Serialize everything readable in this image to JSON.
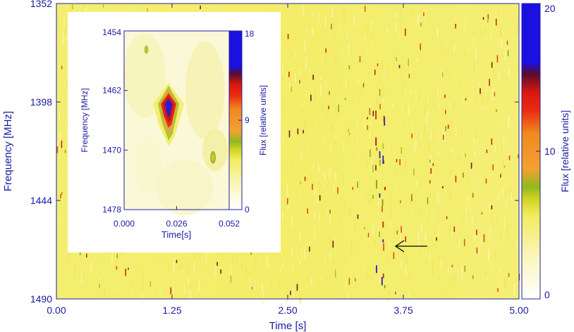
{
  "chart_data": [
    {
      "type": "heatmap",
      "panel": "main dynamic spectrum",
      "xlabel": "Time [s]",
      "ylabel": "Frequency [MHz]",
      "x_ticks": [
        "0.00",
        "1.25",
        "2.50",
        "3.75",
        "5.00"
      ],
      "y_ticks": [
        "1352",
        "1398",
        "1444",
        "1490"
      ],
      "xlim": [
        0.0,
        5.0
      ],
      "ylim": [
        1352,
        1490
      ],
      "y_inverted": true,
      "colorbar": {
        "label": "Flux [relative units]",
        "ticks": [
          "0",
          "10",
          "20"
        ],
        "range": [
          0,
          20
        ]
      },
      "background_level": 4,
      "annotation": {
        "type": "arrow",
        "points_to": {
          "time": 3.55,
          "frequency": 1466
        }
      },
      "burst_candidate": {
        "time": 3.5,
        "frequency": 1466
      }
    },
    {
      "type": "heatmap",
      "panel": "inset zoom",
      "xlabel": "Time[s]",
      "ylabel": "Frequency [MHz]",
      "x_ticks": [
        "0.000",
        "0.026",
        "0.052"
      ],
      "y_ticks": [
        "1454",
        "1462",
        "1470",
        "1478"
      ],
      "xlim": [
        0.0,
        0.052
      ],
      "ylim": [
        1454,
        1478
      ],
      "y_inverted": true,
      "colorbar": {
        "label": "Flux [relative units]",
        "ticks": [
          "0",
          "9",
          "18"
        ],
        "range": [
          0,
          18
        ]
      },
      "peak": {
        "time": 0.022,
        "frequency": 1464,
        "flux": 18
      }
    }
  ],
  "colors": {
    "axis_text": "#1a1aa0",
    "background_field": "#f3ee6a",
    "colormap": [
      "#ffffff",
      "#fbf6b0",
      "#f2ea4f",
      "#cfd21a",
      "#8fb21e",
      "#f08a1e",
      "#e01c10",
      "#6a0c22",
      "#1a10e0"
    ]
  }
}
